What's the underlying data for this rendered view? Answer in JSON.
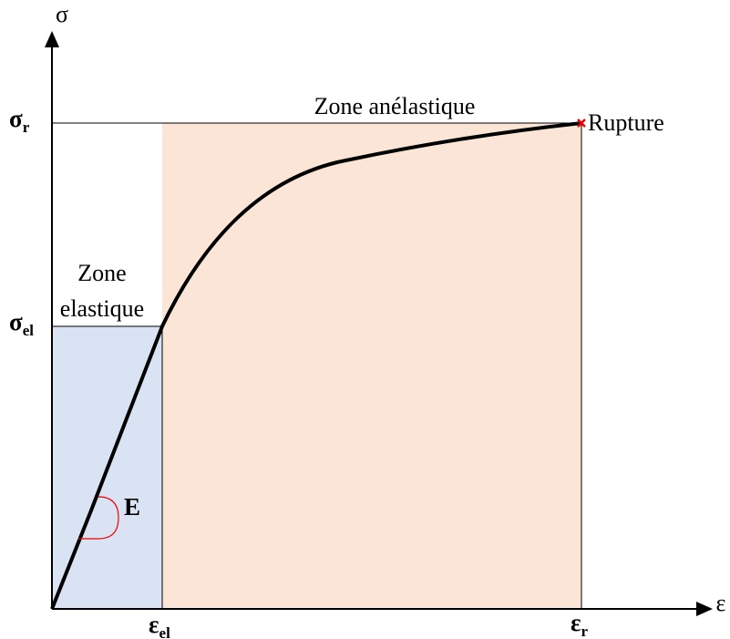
{
  "axes": {
    "y_label": "σ",
    "x_label": "ε"
  },
  "y_markers": [
    {
      "symbol": "σ",
      "subscript": "r"
    },
    {
      "symbol": "σ",
      "subscript": "el"
    }
  ],
  "x_markers": [
    {
      "symbol": "ε",
      "subscript": "el"
    },
    {
      "symbol": "ε",
      "subscript": "r"
    }
  ],
  "zones": [
    {
      "lines": [
        "Zone",
        "elastique"
      ]
    },
    {
      "label": "Zone anélastique"
    }
  ],
  "rupture_label": "Rupture",
  "modulus_label": "E"
}
